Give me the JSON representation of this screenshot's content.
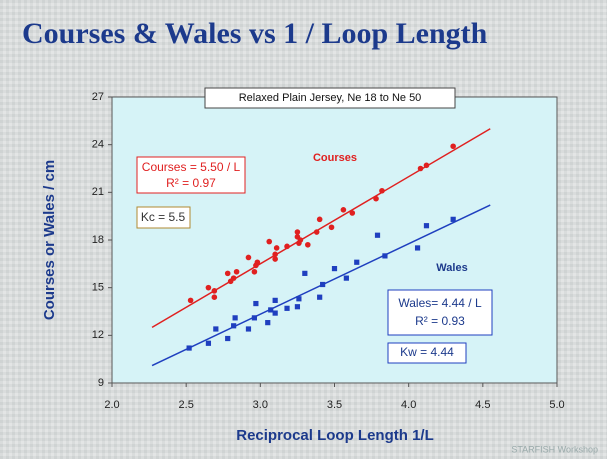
{
  "chart_data": {
    "type": "scatter",
    "title": "Courses & Wales vs 1 / Loop Length",
    "subtitle": "Relaxed Plain Jersey, Ne 18 to Ne 50",
    "x_label": "Reciprocal Loop Length  1/L",
    "y_label": "Courses or Wales / cm",
    "xlim": [
      2,
      5
    ],
    "xticks": [
      {
        "value": 2,
        "label": "2.0"
      },
      {
        "value": 2.5,
        "label": "2.5"
      },
      {
        "value": 3,
        "label": "3.0"
      },
      {
        "value": 3.5,
        "label": "3.5"
      },
      {
        "value": 4,
        "label": "4.0"
      },
      {
        "value": 4.5,
        "label": "4.5"
      },
      {
        "value": 5,
        "label": "5.0"
      }
    ],
    "ylim": [
      9,
      27
    ],
    "yticks": [
      9,
      12,
      15,
      18,
      21,
      24,
      27
    ],
    "grid": false,
    "series": [
      {
        "name": "Courses",
        "color": "#e02020",
        "x": [
          2.53,
          2.65,
          2.69,
          2.69,
          2.78,
          2.8,
          2.82,
          2.84,
          2.92,
          2.96,
          2.97,
          2.98,
          3.06,
          3.1,
          3.1,
          3.11,
          3.18,
          3.25,
          3.25,
          3.26,
          3.27,
          3.32,
          3.38,
          3.4,
          3.48,
          3.56,
          3.62,
          3.78,
          3.82,
          4.08,
          4.12,
          4.3
        ],
        "values": [
          14.2,
          15.0,
          14.4,
          14.8,
          15.9,
          15.4,
          15.6,
          16.0,
          16.9,
          16.0,
          16.4,
          16.6,
          17.9,
          16.8,
          17.1,
          17.5,
          17.6,
          18.5,
          18.2,
          17.8,
          18.0,
          17.7,
          18.5,
          19.3,
          18.8,
          19.9,
          19.7,
          20.6,
          21.1,
          22.5,
          22.7,
          23.9
        ],
        "fit_x": [
          2.27,
          4.55
        ],
        "fit_y": [
          12.5,
          25.0
        ],
        "equation": "Courses  =  5.50 / L",
        "r2": "R² = 0.97",
        "k": "Kc = 5.5"
      },
      {
        "name": "Wales",
        "color": "#1f3fbf",
        "x": [
          2.52,
          2.65,
          2.7,
          2.78,
          2.82,
          2.83,
          2.92,
          2.96,
          2.97,
          3.05,
          3.07,
          3.1,
          3.1,
          3.18,
          3.25,
          3.26,
          3.3,
          3.4,
          3.42,
          3.5,
          3.58,
          3.65,
          3.79,
          3.84,
          4.06,
          4.12,
          4.3
        ],
        "values": [
          11.2,
          11.5,
          12.4,
          11.8,
          12.6,
          13.1,
          12.4,
          13.1,
          14.0,
          12.8,
          13.6,
          14.2,
          13.4,
          13.7,
          13.8,
          14.3,
          15.9,
          14.4,
          15.2,
          16.2,
          15.6,
          16.6,
          18.3,
          17.0,
          17.5,
          18.9,
          19.3
        ],
        "fit_x": [
          2.27,
          4.55
        ],
        "fit_y": [
          10.1,
          20.2
        ],
        "equation": "Wales= 4.44 / L",
        "r2": "R² = 0.93",
        "k": "Kw = 4.44"
      }
    ],
    "footer": "STARFISH Workshop"
  }
}
